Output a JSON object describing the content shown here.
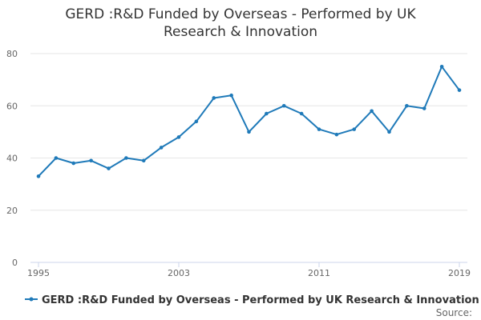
{
  "chart_data": {
    "type": "line",
    "title_lines": [
      "GERD :R&D Funded by Overseas - Performed by UK",
      "Research & Innovation"
    ],
    "xlabel": "",
    "ylabel": "",
    "ylim": [
      0,
      80
    ],
    "yticks": [
      0,
      20,
      40,
      60,
      80
    ],
    "xlim": [
      1995,
      2019
    ],
    "xticks": [
      1995,
      2003,
      2011,
      2019
    ],
    "grid": true,
    "legend_position": "bottom-center",
    "series": [
      {
        "name": "GERD :R&D Funded by Overseas - Performed by UK Research & Innovation",
        "color": "#1f7ab9",
        "x": [
          1995,
          1996,
          1997,
          1998,
          1999,
          2000,
          2001,
          2002,
          2003,
          2004,
          2005,
          2006,
          2007,
          2008,
          2009,
          2010,
          2011,
          2012,
          2013,
          2014,
          2015,
          2016,
          2017,
          2018,
          2019
        ],
        "values": [
          33,
          40,
          38,
          39,
          36,
          40,
          39,
          44,
          48,
          54,
          63,
          64,
          50,
          57,
          60,
          57,
          51,
          49,
          51,
          58,
          50,
          60,
          59,
          75,
          66
        ]
      }
    ]
  },
  "source_label": "Source:"
}
